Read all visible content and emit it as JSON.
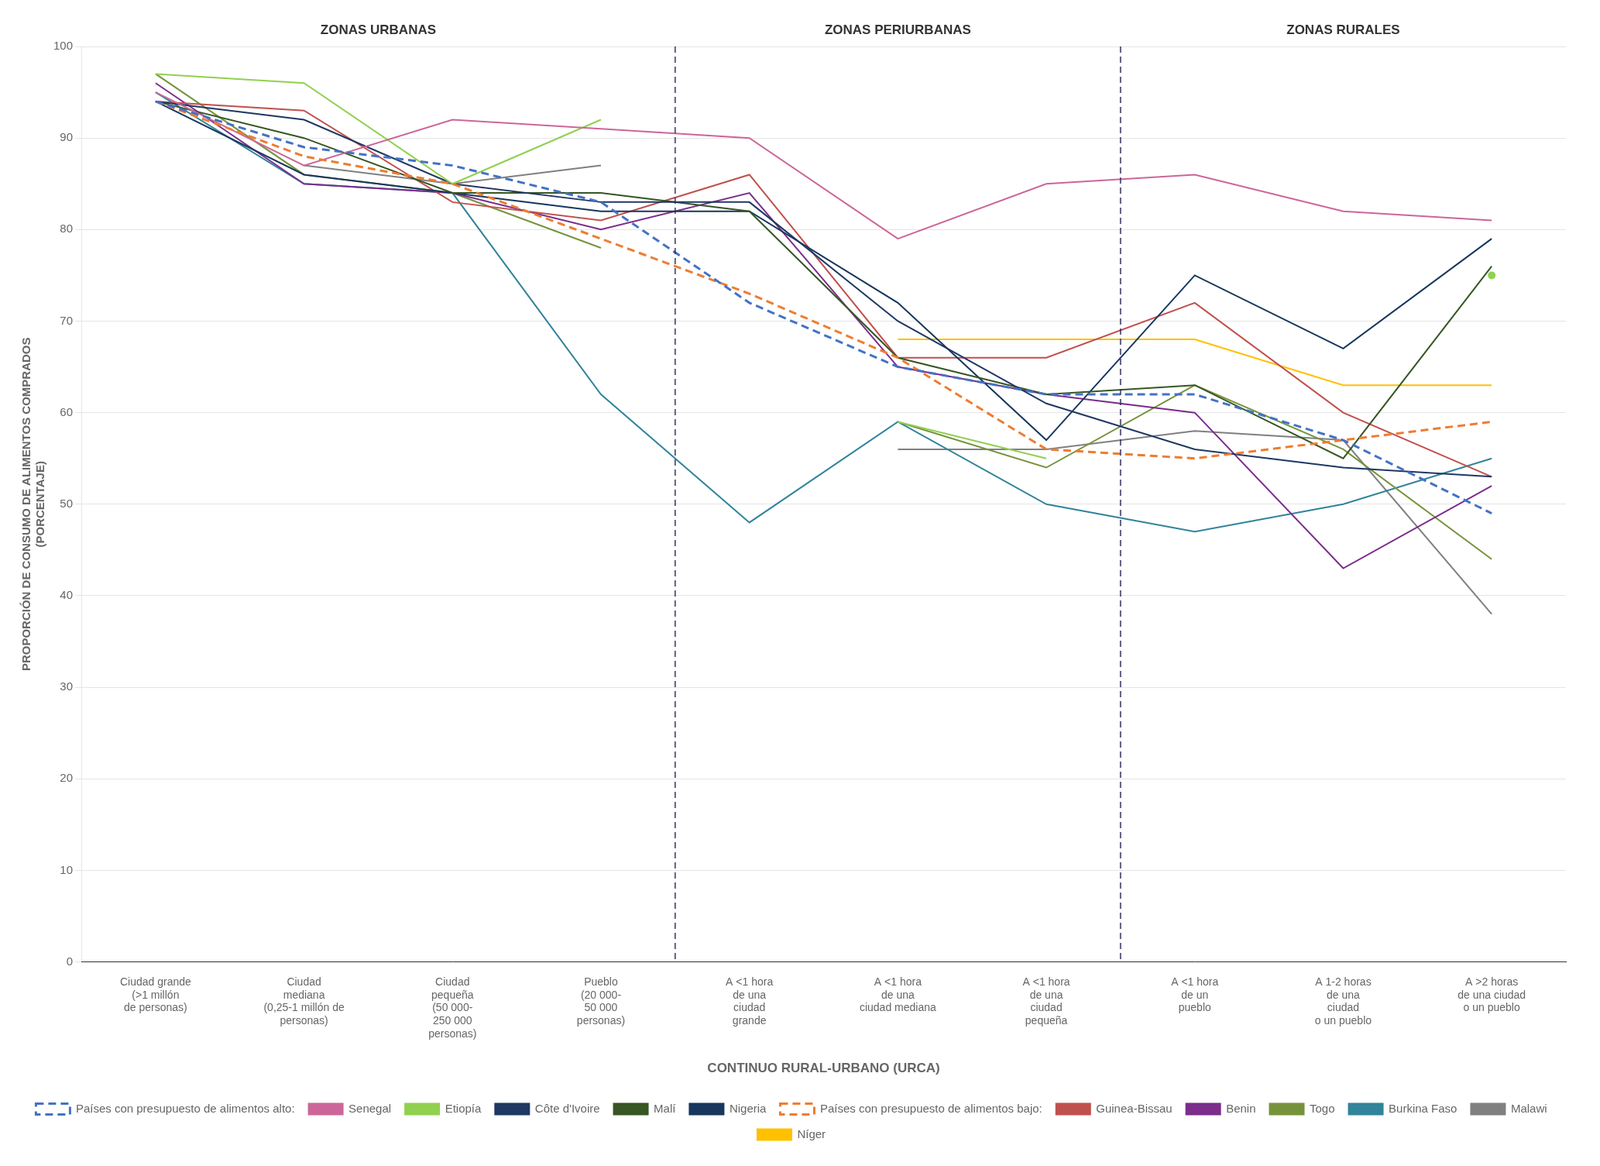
{
  "chart_data": {
    "type": "line",
    "xlabel": "CONTINUO RURAL-URBANO (URCA)",
    "ylabel": "PROPORCIÓN DE CONSUMO DE ALIMENTOS COMPRADOS\n(PORCENTAJE)",
    "categories": [
      "Ciudad grande\n(>1 millón\nde personas)",
      "Ciudad\nmediana\n(0,25-1 millón de\npersonas)",
      "Ciudad\npequeña\n(50 000-\n250 000\npersonas)",
      "Pueblo\n(20 000-\n50 000\npersonas)",
      "A <1 hora\nde una\nciudad\ngrande",
      "A <1 hora\nde una\nciudad mediana",
      "A <1 hora\nde una\nciudad\npequeña",
      "A <1 hora\nde un\npueblo",
      "A 1-2 horas\nde una\nciudad\no un pueblo",
      "A >2 horas\nde una ciudad\no un pueblo"
    ],
    "series": [
      {
        "name": "Países con presupuesto de alimentos alto:",
        "color": "#4472C4",
        "line_style": "dashed",
        "values": [
          94,
          89,
          87,
          83,
          72,
          65,
          62,
          62,
          57,
          49
        ]
      },
      {
        "name": "Senegal",
        "color": "#CC6699",
        "line_style": "solid",
        "values": [
          95,
          87,
          92,
          91,
          90,
          79,
          85,
          86,
          82,
          81
        ]
      },
      {
        "name": "Etiopía",
        "color": "#92D050",
        "line_style": "solid",
        "values": [
          97,
          96,
          85,
          92,
          null,
          59,
          55,
          null,
          null,
          75
        ]
      },
      {
        "name": "Côte d'Ivoire",
        "color": "#1F3864",
        "line_style": "solid",
        "values": [
          94,
          92,
          85,
          83,
          83,
          70,
          61,
          56,
          54,
          53
        ]
      },
      {
        "name": "Malí",
        "color": "#375623",
        "line_style": "solid",
        "values": [
          94,
          90,
          84,
          84,
          82,
          66,
          62,
          63,
          55,
          76
        ]
      },
      {
        "name": "Nigeria",
        "color": "#17375E",
        "line_style": "solid",
        "values": [
          94,
          86,
          84,
          82,
          82,
          72,
          57,
          75,
          67,
          79
        ]
      },
      {
        "name": "Países con presupuesto de alimentos bajo:",
        "color": "#ED7D31",
        "line_style": "dashed",
        "values": [
          94,
          88,
          85,
          79,
          73,
          66,
          56,
          55,
          57,
          59
        ]
      },
      {
        "name": "Guinea-Bissau",
        "color": "#C0504D",
        "line_style": "solid",
        "values": [
          94,
          93,
          83,
          81,
          86,
          66,
          66,
          72,
          60,
          53
        ]
      },
      {
        "name": "Benin",
        "color": "#7B2D8B",
        "line_style": "solid",
        "values": [
          96,
          85,
          84,
          80,
          84,
          65,
          62,
          60,
          43,
          52
        ]
      },
      {
        "name": "Togo",
        "color": "#76933C",
        "line_style": "solid",
        "values": [
          97,
          86,
          84,
          78,
          null,
          59,
          54,
          63,
          56,
          44
        ]
      },
      {
        "name": "Burkina Faso",
        "color": "#31849B",
        "line_style": "solid",
        "values": [
          95,
          85,
          84,
          62,
          48,
          59,
          50,
          47,
          50,
          55
        ]
      },
      {
        "name": "Malawi",
        "color": "#808080",
        "line_style": "solid",
        "values": [
          null,
          87,
          85,
          87,
          null,
          56,
          56,
          58,
          57,
          38
        ]
      },
      {
        "name": "Níger",
        "color": "#FFC000",
        "line_style": "solid",
        "values": [
          null,
          null,
          null,
          null,
          null,
          68,
          68,
          68,
          63,
          63
        ]
      }
    ],
    "annotations": [
      {
        "text": "ZONAS URBANAS",
        "x": 1.5
      },
      {
        "text": "ZONAS PERIURBANAS",
        "x": 5.0
      },
      {
        "text": "ZONAS RURALES",
        "x": 8.0
      }
    ],
    "dashed_lines_x": [
      3.5,
      6.5
    ],
    "ylim": [
      0,
      100
    ],
    "yticks": [
      0,
      10,
      20,
      30,
      40,
      50,
      60,
      70,
      80,
      90,
      100
    ],
    "grid": true,
    "legend": "bottom"
  }
}
